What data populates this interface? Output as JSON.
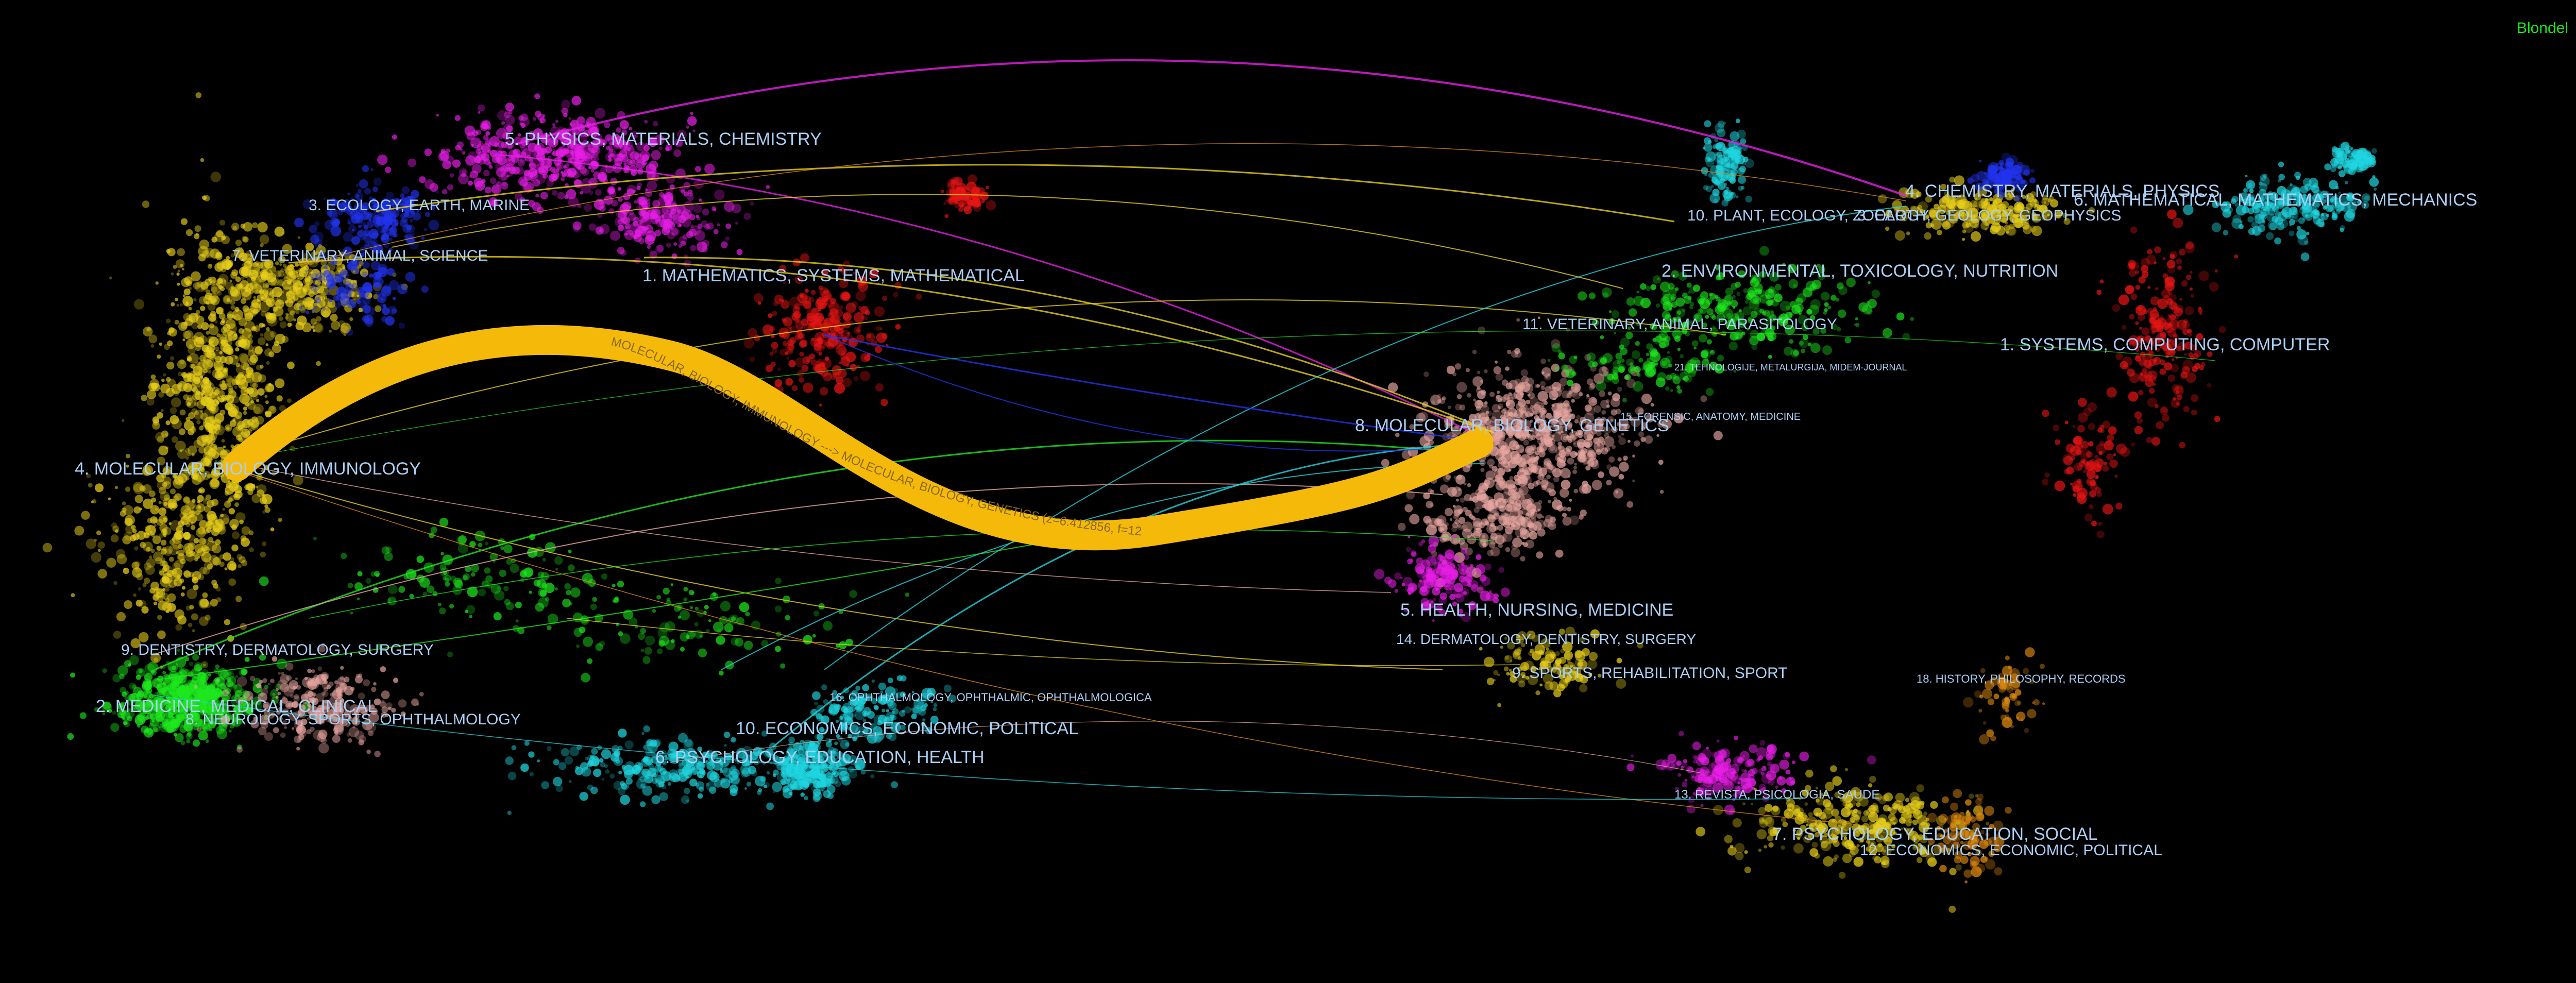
{
  "algorithm": "Blondel",
  "main_flow_label": "MOLECULAR, BIOLOGY, IMMUNOLOGY ---> MOLECULAR, BIOLOGY, GENETICS (z=6.412856, f=1299)",
  "colors": {
    "background": "#000000",
    "main_flow": "#f5b90a",
    "label": "#a9cff5",
    "algorithm": "#19e619",
    "magenta": "#e91ee8",
    "yellow": "#e8cf1a",
    "cyan": "#1fd6e0",
    "green": "#1ee81e",
    "red": "#e81515",
    "blue": "#2233ee",
    "pink": "#e8a6a0",
    "orange": "#e08a10"
  },
  "left_clusters": [
    {
      "id": "1",
      "label": "1. MATHEMATICS, SYSTEMS, MATHEMATICAL",
      "color": "red"
    },
    {
      "id": "2",
      "label": "2. MEDICINE, MEDICAL, CLINICAL",
      "color": "green"
    },
    {
      "id": "3",
      "label": "3. ECOLOGY, EARTH, MARINE",
      "color": "blue"
    },
    {
      "id": "4",
      "label": "4. MOLECULAR, BIOLOGY, IMMUNOLOGY",
      "color": "yellow"
    },
    {
      "id": "5",
      "label": "5. PHYSICS, MATERIALS, CHEMISTRY",
      "color": "magenta"
    },
    {
      "id": "6",
      "label": "6. PSYCHOLOGY, EDUCATION, HEALTH",
      "color": "cyan"
    },
    {
      "id": "7",
      "label": "7. VETERINARY, ANIMAL, SCIENCE",
      "color": "yellow"
    },
    {
      "id": "8",
      "label": "8. NEUROLOGY, SPORTS, OPHTHALMOLOGY",
      "color": "pink"
    },
    {
      "id": "9",
      "label": "9. DENTISTRY, DERMATOLOGY, SURGERY",
      "color": "green"
    },
    {
      "id": "10",
      "label": "10. ECONOMICS, ECONOMIC, POLITICAL",
      "color": "cyan"
    }
  ],
  "right_clusters": [
    {
      "id": "1",
      "label": "1. SYSTEMS, COMPUTING, COMPUTER",
      "color": "red"
    },
    {
      "id": "2",
      "label": "2. ENVIRONMENTAL, TOXICOLOGY, NUTRITION",
      "color": "green"
    },
    {
      "id": "3",
      "label": "3. EARTH, GEOLOGY, GEOPHYSICS",
      "color": "blue"
    },
    {
      "id": "4",
      "label": "4. CHEMISTRY, MATERIALS, PHYSICS",
      "color": "yellow"
    },
    {
      "id": "5",
      "label": "5. HEALTH, NURSING, MEDICINE",
      "color": "magenta"
    },
    {
      "id": "6",
      "label": "6. MATHEMATICAL, MATHEMATICS, MECHANICS",
      "color": "cyan"
    },
    {
      "id": "7",
      "label": "7. PSYCHOLOGY, EDUCATION, SOCIAL",
      "color": "yellow"
    },
    {
      "id": "8",
      "label": "8. MOLECULAR, BIOLOGY, GENETICS",
      "color": "pink"
    },
    {
      "id": "9",
      "label": "9. SPORTS, REHABILITATION, SPORT",
      "color": "yellow"
    },
    {
      "id": "10",
      "label": "10. PLANT, ECOLOGY, ZOOLOGY",
      "color": "cyan"
    },
    {
      "id": "11",
      "label": "11. VETERINARY, ANIMAL, PARASITOLOGY",
      "color": "green"
    },
    {
      "id": "12",
      "label": "12. ECONOMICS, ECONOMIC, POLITICAL",
      "color": "orange"
    },
    {
      "id": "13",
      "label": "13. REVISTA, PSICOLOGIA, SAUDE",
      "color": "magenta"
    },
    {
      "id": "14",
      "label": "14. DERMATOLOGY, DENTISTRY, SURGERY",
      "color": "magenta"
    },
    {
      "id": "15",
      "label": "15. FORENSIC, ANATOMY, MEDICINE",
      "color": "green"
    },
    {
      "id": "16",
      "label": "16. OPHTHALMOLOGY, OPHTHALMIC, OPHTHALMOLOGICA",
      "color": "cyan"
    },
    {
      "id": "18",
      "label": "18. HISTORY, PHILOSOPHY, RECORDS",
      "color": "orange"
    },
    {
      "id": "21",
      "label": "21. TEHNOLOGIJE, METALURGIJA, MIDEM-JOURNAL",
      "color": "green"
    }
  ]
}
